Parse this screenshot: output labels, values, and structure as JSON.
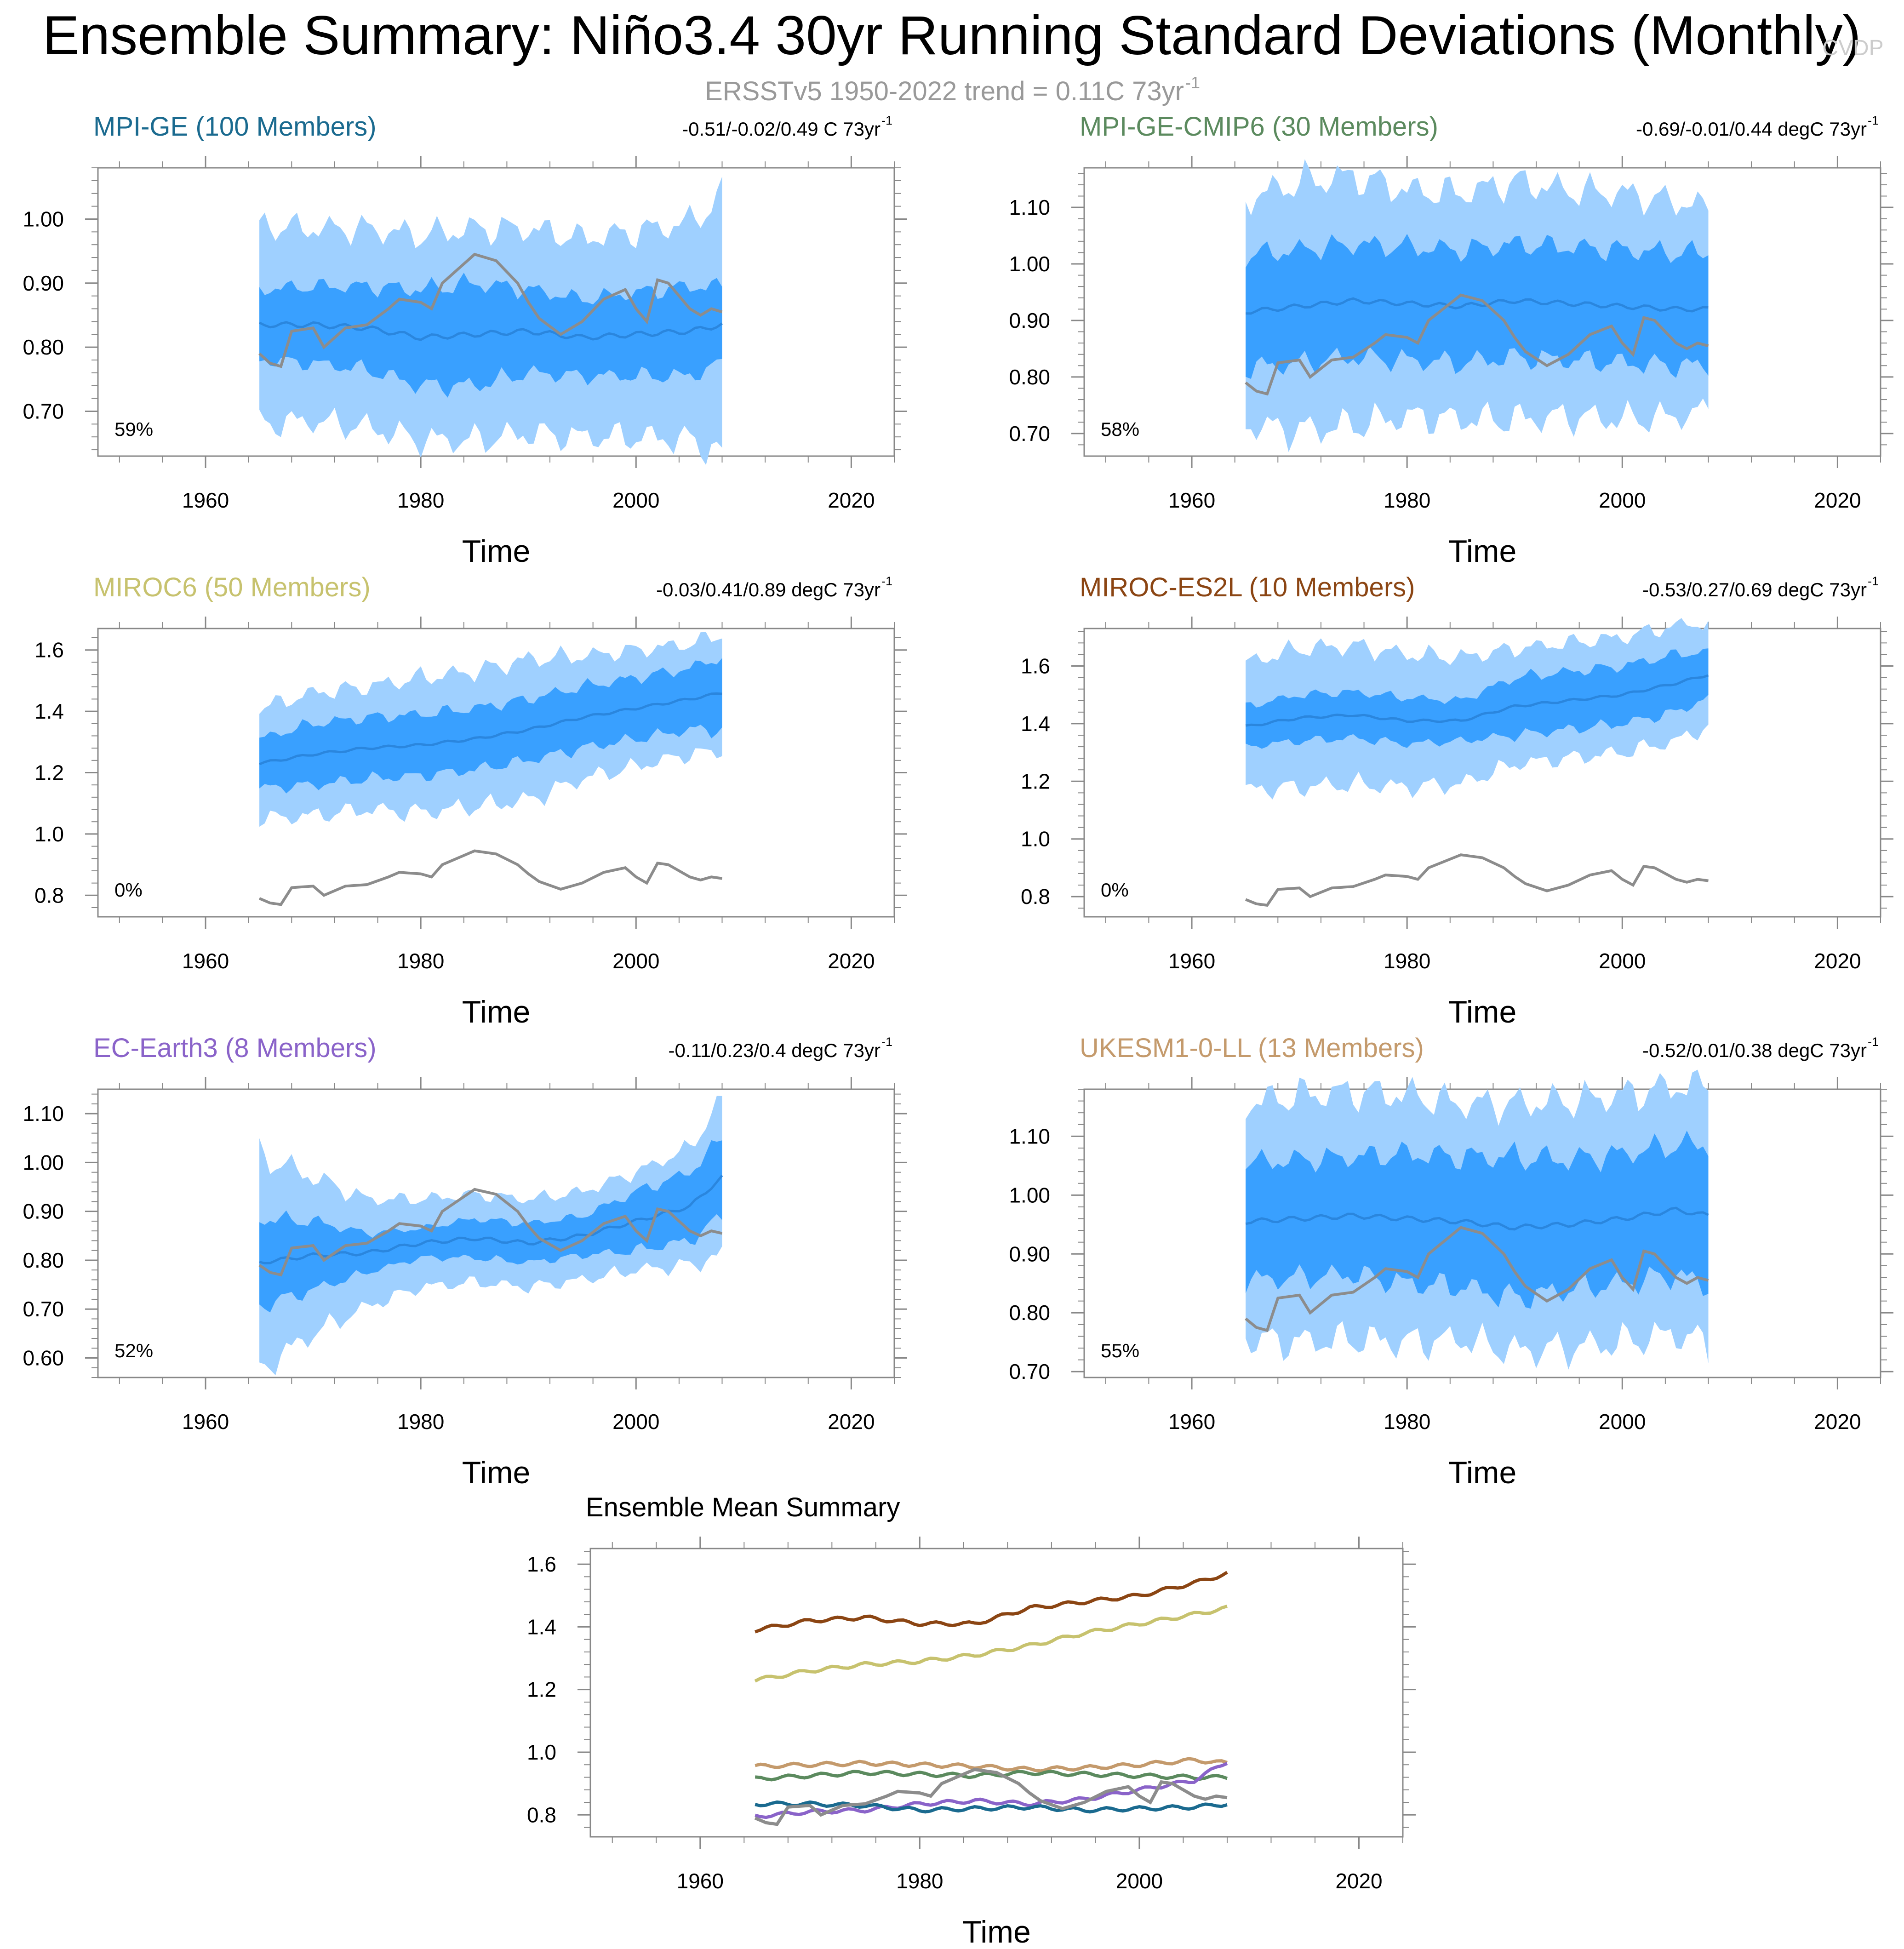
{
  "title": "Ensemble Summary: Niño3.4 30yr Running Standard Deviations (Monthly)",
  "subtitle_text": "ERSSTv5 1950-2022 trend = 0.11C 73yr",
  "subtitle_exp": "-1",
  "watermark": "CVDP",
  "colors": {
    "light_band": "#9fd0ff",
    "dark_band": "#39a0ff",
    "mean_line": "#2a86de",
    "obs_line": "#8c8c8c",
    "axis": "#000000",
    "tick": "#888888"
  },
  "panels": [
    {
      "title": "MPI-GE (100 Members)",
      "color": "#1a6a8f",
      "trend_text": "-0.51/-0.02/0.49 C 73yr",
      "trend_exp": "-1",
      "pct": "59%",
      "ylim": [
        0.63,
        1.08
      ],
      "yticks": [
        0.7,
        0.8,
        0.9,
        1.0
      ],
      "ytick_labels": [
        "0.70",
        "0.80",
        "0.90",
        "1.00"
      ],
      "mean": [
        [
          1965,
          0.835
        ],
        [
          1970,
          0.835
        ],
        [
          1975,
          0.83
        ],
        [
          1980,
          0.815
        ],
        [
          1985,
          0.82
        ],
        [
          1990,
          0.825
        ],
        [
          1995,
          0.815
        ],
        [
          2000,
          0.82
        ],
        [
          2005,
          0.825
        ],
        [
          2008,
          0.835
        ]
      ],
      "spread50": [
        0.055,
        0.06,
        0.065,
        0.075,
        0.08,
        0.065,
        0.06,
        0.065,
        0.07,
        0.06
      ],
      "spread90": [
        0.155,
        0.15,
        0.155,
        0.16,
        0.165,
        0.16,
        0.155,
        0.16,
        0.17,
        0.2
      ]
    },
    {
      "title": "MPI-GE-CMIP6 (30 Members)",
      "color": "#5b8a5e",
      "trend_text": "-0.69/-0.01/0.44 degC 73yr",
      "trend_exp": "-1",
      "pct": "58%",
      "ylim": [
        0.66,
        1.17
      ],
      "yticks": [
        0.7,
        0.8,
        0.9,
        1.0,
        1.1
      ],
      "ytick_labels": [
        "0.70",
        "0.80",
        "0.90",
        "1.00",
        "1.10"
      ],
      "mean": [
        [
          1965,
          0.915
        ],
        [
          1970,
          0.925
        ],
        [
          1975,
          0.935
        ],
        [
          1980,
          0.93
        ],
        [
          1985,
          0.925
        ],
        [
          1990,
          0.935
        ],
        [
          1995,
          0.93
        ],
        [
          2000,
          0.925
        ],
        [
          2005,
          0.92
        ],
        [
          2008,
          0.92
        ]
      ],
      "spread50": [
        0.1,
        0.1,
        0.1,
        0.1,
        0.1,
        0.1,
        0.1,
        0.1,
        0.1,
        0.1
      ],
      "spread90": [
        0.2,
        0.22,
        0.22,
        0.2,
        0.2,
        0.21,
        0.2,
        0.2,
        0.19,
        0.18
      ]
    },
    {
      "title": "MIROC6 (50 Members)",
      "color": "#c7c26e",
      "trend_text": "-0.03/0.41/0.89 degC 73yr",
      "trend_exp": "-1",
      "pct": "0%",
      "ylim": [
        0.73,
        1.67
      ],
      "yticks": [
        0.8,
        1.0,
        1.2,
        1.4,
        1.6
      ],
      "ytick_labels": [
        "0.8",
        "1.0",
        "1.2",
        "1.4",
        "1.6"
      ],
      "mean": [
        [
          1965,
          1.23
        ],
        [
          1970,
          1.26
        ],
        [
          1975,
          1.28
        ],
        [
          1980,
          1.29
        ],
        [
          1985,
          1.31
        ],
        [
          1990,
          1.34
        ],
        [
          1995,
          1.38
        ],
        [
          2000,
          1.41
        ],
        [
          2005,
          1.44
        ],
        [
          2008,
          1.46
        ]
      ],
      "spread50": [
        0.08,
        0.1,
        0.1,
        0.1,
        0.1,
        0.1,
        0.1,
        0.1,
        0.1,
        0.12
      ],
      "spread90": [
        0.18,
        0.2,
        0.2,
        0.22,
        0.22,
        0.23,
        0.2,
        0.19,
        0.18,
        0.19
      ]
    },
    {
      "title": "MIROC-ES2L (10 Members)",
      "color": "#8b4513",
      "trend_text": "-0.53/0.27/0.69 degC 73yr",
      "trend_exp": "-1",
      "pct": "0%",
      "ylim": [
        0.73,
        1.73
      ],
      "yticks": [
        0.8,
        1.0,
        1.2,
        1.4,
        1.6
      ],
      "ytick_labels": [
        "0.8",
        "1.0",
        "1.2",
        "1.4",
        "1.6"
      ],
      "mean": [
        [
          1965,
          1.39
        ],
        [
          1970,
          1.42
        ],
        [
          1975,
          1.43
        ],
        [
          1980,
          1.41
        ],
        [
          1985,
          1.41
        ],
        [
          1990,
          1.46
        ],
        [
          1995,
          1.48
        ],
        [
          2000,
          1.5
        ],
        [
          2005,
          1.54
        ],
        [
          2008,
          1.57
        ]
      ],
      "spread50": [
        0.07,
        0.08,
        0.08,
        0.08,
        0.07,
        0.1,
        0.1,
        0.1,
        0.1,
        0.08
      ],
      "spread90": [
        0.22,
        0.24,
        0.24,
        0.23,
        0.22,
        0.2,
        0.2,
        0.2,
        0.2,
        0.18
      ]
    },
    {
      "title": "EC-Earth3 (8 Members)",
      "color": "#8a63c9",
      "trend_text": "-0.11/0.23/0.4 degC 73yr",
      "trend_exp": "-1",
      "pct": "52%",
      "ylim": [
        0.56,
        1.15
      ],
      "yticks": [
        0.6,
        0.7,
        0.8,
        0.9,
        1.0,
        1.1
      ],
      "ytick_labels": [
        "0.60",
        "0.70",
        "0.80",
        "0.90",
        "1.00",
        "1.10"
      ],
      "mean": [
        [
          1965,
          0.795
        ],
        [
          1970,
          0.81
        ],
        [
          1975,
          0.815
        ],
        [
          1980,
          0.835
        ],
        [
          1985,
          0.845
        ],
        [
          1990,
          0.835
        ],
        [
          1995,
          0.85
        ],
        [
          2000,
          0.88
        ],
        [
          2005,
          0.91
        ],
        [
          2008,
          0.97
        ]
      ],
      "spread50": [
        0.09,
        0.07,
        0.04,
        0.03,
        0.04,
        0.04,
        0.04,
        0.06,
        0.07,
        0.08
      ],
      "spread90": [
        0.22,
        0.16,
        0.11,
        0.09,
        0.09,
        0.09,
        0.09,
        0.1,
        0.12,
        0.16
      ]
    },
    {
      "title": "UKESM1-0-LL (13 Members)",
      "color": "#c49a6c",
      "trend_text": "-0.52/0.01/0.38 degC 73yr",
      "trend_exp": "-1",
      "pct": "55%",
      "ylim": [
        0.69,
        1.18
      ],
      "yticks": [
        0.7,
        0.8,
        0.9,
        1.0,
        1.1
      ],
      "ytick_labels": [
        "0.70",
        "0.80",
        "0.90",
        "1.00",
        "1.10"
      ],
      "mean": [
        [
          1965,
          0.955
        ],
        [
          1970,
          0.96
        ],
        [
          1975,
          0.965
        ],
        [
          1980,
          0.96
        ],
        [
          1985,
          0.955
        ],
        [
          1990,
          0.945
        ],
        [
          1995,
          0.95
        ],
        [
          2000,
          0.96
        ],
        [
          2005,
          0.975
        ],
        [
          2008,
          0.965
        ]
      ],
      "spread50": [
        0.1,
        0.1,
        0.1,
        0.11,
        0.11,
        0.12,
        0.11,
        0.11,
        0.11,
        0.12
      ],
      "spread90": [
        0.2,
        0.21,
        0.21,
        0.21,
        0.2,
        0.21,
        0.21,
        0.21,
        0.21,
        0.22
      ]
    }
  ],
  "obs": [
    [
      1965,
      0.79
    ],
    [
      1966,
      0.775
    ],
    [
      1967,
      0.77
    ],
    [
      1968,
      0.825
    ],
    [
      1970,
      0.83
    ],
    [
      1971,
      0.8
    ],
    [
      1973,
      0.83
    ],
    [
      1975,
      0.835
    ],
    [
      1977,
      0.86
    ],
    [
      1978,
      0.875
    ],
    [
      1980,
      0.87
    ],
    [
      1981,
      0.86
    ],
    [
      1982,
      0.9
    ],
    [
      1984,
      0.93
    ],
    [
      1985,
      0.945
    ],
    [
      1987,
      0.935
    ],
    [
      1989,
      0.9
    ],
    [
      1990,
      0.87
    ],
    [
      1991,
      0.845
    ],
    [
      1993,
      0.82
    ],
    [
      1995,
      0.84
    ],
    [
      1997,
      0.875
    ],
    [
      1999,
      0.89
    ],
    [
      2000,
      0.86
    ],
    [
      2001,
      0.84
    ],
    [
      2002,
      0.905
    ],
    [
      2003,
      0.9
    ],
    [
      2005,
      0.86
    ],
    [
      2006,
      0.85
    ],
    [
      2007,
      0.86
    ],
    [
      2008,
      0.855
    ]
  ],
  "chart_data": {
    "type": "line",
    "title": "Ensemble Mean Summary",
    "xlabel": "Time",
    "xlim": [
      1950,
      2024
    ],
    "ylim": [
      0.73,
      1.65
    ],
    "yticks": [
      0.8,
      1.0,
      1.2,
      1.4,
      1.6
    ],
    "ytick_labels": [
      "0.8",
      "1.0",
      "1.2",
      "1.4",
      "1.6"
    ],
    "xticks": [
      1960,
      1980,
      2000,
      2020
    ],
    "xtick_labels": [
      "1960",
      "1980",
      "2000",
      "2020"
    ],
    "series": [
      {
        "name": "MIROC-ES2L",
        "color": "#8b4513"
      },
      {
        "name": "MIROC6",
        "color": "#c7c26e"
      },
      {
        "name": "UKESM1-0-LL",
        "color": "#c49a6c"
      },
      {
        "name": "MPI-GE-CMIP6",
        "color": "#5b8a5e"
      },
      {
        "name": "EC-Earth3",
        "color": "#8a63c9"
      },
      {
        "name": "MPI-GE",
        "color": "#1a6a8f"
      },
      {
        "name": "ERSSTv5",
        "color": "#8c8c8c"
      }
    ]
  },
  "axis_common": {
    "xlabel": "Time",
    "xlim": [
      1950,
      2024
    ],
    "xticks": [
      1960,
      1980,
      2000,
      2020
    ],
    "xtick_labels": [
      "1960",
      "1980",
      "2000",
      "2020"
    ]
  }
}
